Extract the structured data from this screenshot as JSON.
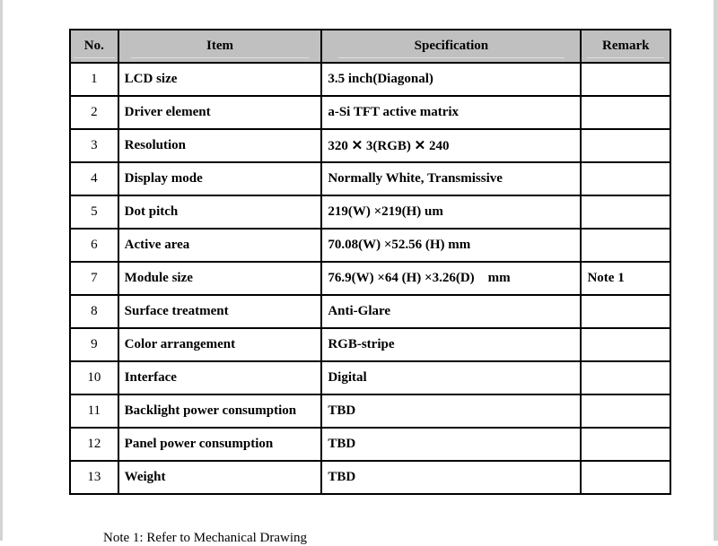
{
  "table": {
    "headers": [
      "No.",
      "Item",
      "Specification",
      "Remark"
    ],
    "rows": [
      {
        "no": "1",
        "item": "LCD size",
        "spec": "3.5 inch(Diagonal)",
        "remark": ""
      },
      {
        "no": "2",
        "item": "Driver element",
        "spec": "a-Si TFT active matrix",
        "remark": ""
      },
      {
        "no": "3",
        "item": "Resolution",
        "spec": "320 ✕ 3(RGB) ✕ 240",
        "remark": ""
      },
      {
        "no": "4",
        "item": "Display mode",
        "spec": "Normally White, Transmissive",
        "remark": ""
      },
      {
        "no": "5",
        "item": "Dot pitch",
        "spec": "219(W) ×219(H) um",
        "remark": ""
      },
      {
        "no": "6",
        "item": "Active area",
        "spec": "70.08(W) ×52.56 (H) mm",
        "remark": ""
      },
      {
        "no": "7",
        "item": "Module size",
        "spec": "76.9(W) ×64 (H) ×3.26(D)    mm",
        "remark": "Note 1"
      },
      {
        "no": "8",
        "item": "Surface treatment",
        "spec": "Anti-Glare",
        "remark": ""
      },
      {
        "no": "9",
        "item": "Color arrangement",
        "spec": "RGB-stripe",
        "remark": ""
      },
      {
        "no": "10",
        "item": "Interface",
        "spec": "Digital",
        "remark": ""
      },
      {
        "no": "11",
        "item": "Backlight power consumption",
        "spec": "TBD",
        "remark": ""
      },
      {
        "no": "12",
        "item": "Panel power consumption",
        "spec": "TBD",
        "remark": ""
      },
      {
        "no": "13",
        "item": "Weight",
        "spec": "TBD",
        "remark": ""
      }
    ]
  },
  "note": "Note 1: Refer to Mechanical Drawing"
}
